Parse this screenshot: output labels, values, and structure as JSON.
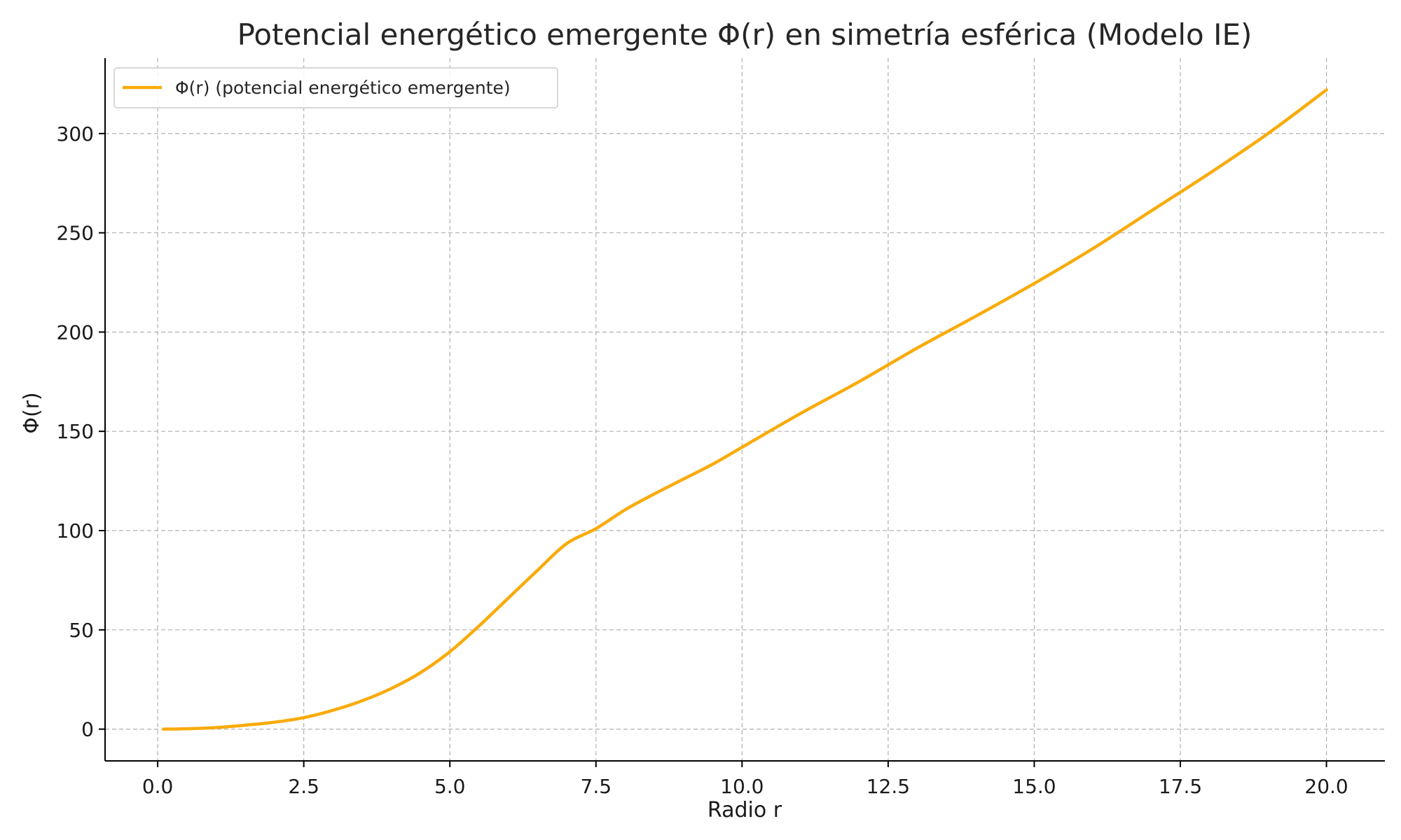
{
  "chart_data": {
    "type": "line",
    "title": "Potencial energético emergente Φ(r) en simetría esférica (Modelo IE)",
    "xlabel": "Radio r",
    "ylabel": "Φ(r)",
    "xlim": [
      -0.9,
      21.0
    ],
    "ylim": [
      -16,
      338
    ],
    "x_ticks": [
      0.0,
      2.5,
      5.0,
      7.5,
      10.0,
      12.5,
      15.0,
      17.5,
      20.0
    ],
    "x_tick_labels": [
      "0.0",
      "2.5",
      "5.0",
      "7.5",
      "10.0",
      "12.5",
      "15.0",
      "17.5",
      "20.0"
    ],
    "y_ticks": [
      0,
      50,
      100,
      150,
      200,
      250,
      300
    ],
    "y_tick_labels": [
      "0",
      "50",
      "100",
      "150",
      "200",
      "250",
      "300"
    ],
    "grid": true,
    "legend_position": "top-left",
    "series": [
      {
        "name": "Φ(r) (potencial energético emergente)",
        "color": "#f9ab0a",
        "x": [
          0.1,
          0.5,
          1.0,
          1.5,
          2.0,
          2.5,
          3.0,
          3.5,
          4.0,
          4.5,
          5.0,
          5.5,
          6.0,
          6.5,
          7.0,
          7.5,
          8.0,
          8.5,
          9.0,
          9.5,
          10.0,
          11.0,
          12.0,
          13.0,
          14.0,
          15.0,
          16.0,
          17.0,
          18.0,
          19.0,
          20.0
        ],
        "y": [
          0,
          0.2,
          0.8,
          2,
          3.5,
          5.8,
          9.5,
          14.3,
          20.5,
          28.5,
          39,
          52,
          66,
          80,
          93.5,
          101,
          110.5,
          118.5,
          126,
          133.5,
          142,
          159,
          175,
          192,
          208,
          224.5,
          242,
          261,
          280,
          300,
          322
        ]
      }
    ]
  }
}
